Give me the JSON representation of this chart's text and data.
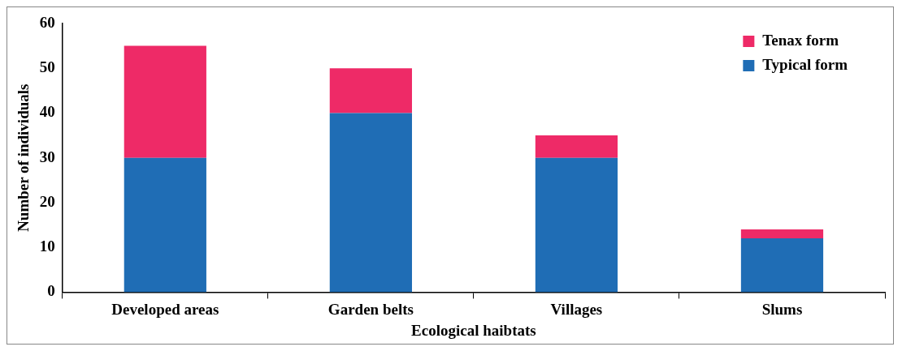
{
  "chart_data": {
    "type": "bar",
    "xlabel": "Ecological haibtats",
    "ylabel": "Number of individuals",
    "categories": [
      "Developed areas",
      "Garden belts",
      "Villages",
      "Slums"
    ],
    "stacked": true,
    "series": [
      {
        "name": "Typical form",
        "color": "#1f6db5",
        "values": [
          30,
          40,
          30,
          12
        ]
      },
      {
        "name": "Tenax form",
        "color": "#ee2a67",
        "values": [
          25,
          10,
          5,
          2
        ]
      }
    ],
    "ylim": [
      0,
      60
    ],
    "yticks": [
      0,
      10,
      20,
      30,
      40,
      50,
      60
    ],
    "grid": false,
    "legend": "top right"
  }
}
